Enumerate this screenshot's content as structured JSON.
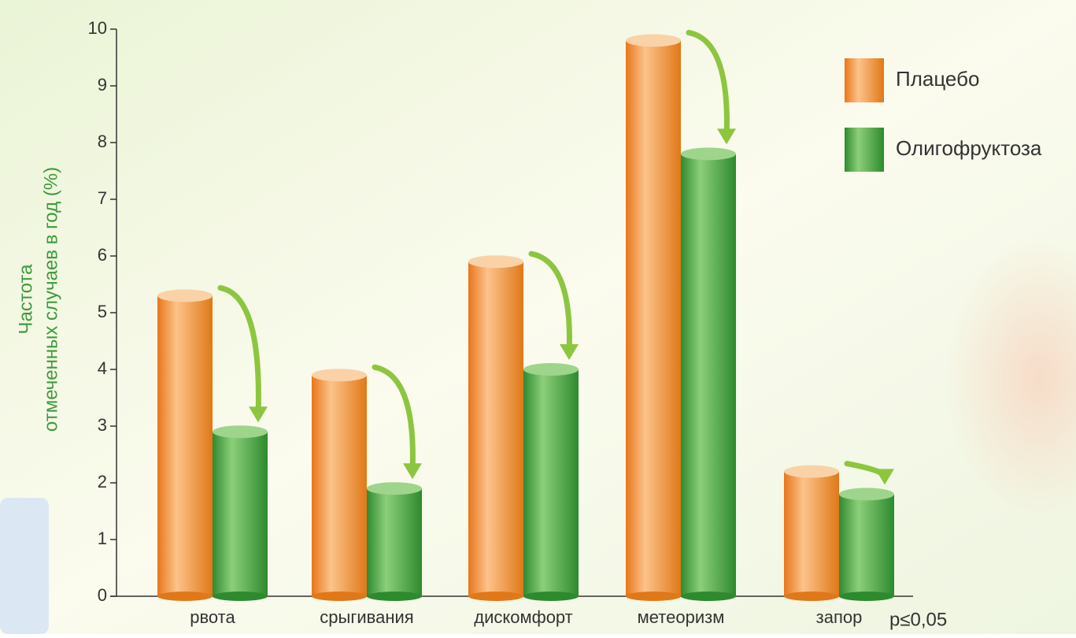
{
  "chart_data": {
    "type": "bar",
    "y_label_lines": [
      "Частота",
      "отмеченных случаев в год (%)"
    ],
    "categories": [
      "рвота",
      "срыгивания",
      "дискомфорт",
      "метеоризм",
      "запор"
    ],
    "series": [
      {
        "name": "Плацебо",
        "color": "#f08a2c",
        "values": [
          5.3,
          3.9,
          5.9,
          9.8,
          2.2
        ]
      },
      {
        "name": "Олигофруктоза",
        "color": "#3d9a3c",
        "values": [
          2.9,
          1.9,
          4.0,
          7.8,
          1.8
        ]
      }
    ],
    "ylim": [
      0,
      10
    ],
    "yticks": [
      0,
      1,
      2,
      3,
      4,
      5,
      6,
      7,
      8,
      9,
      10
    ],
    "annotation": "p≤0,05",
    "legend": "top-right"
  }
}
